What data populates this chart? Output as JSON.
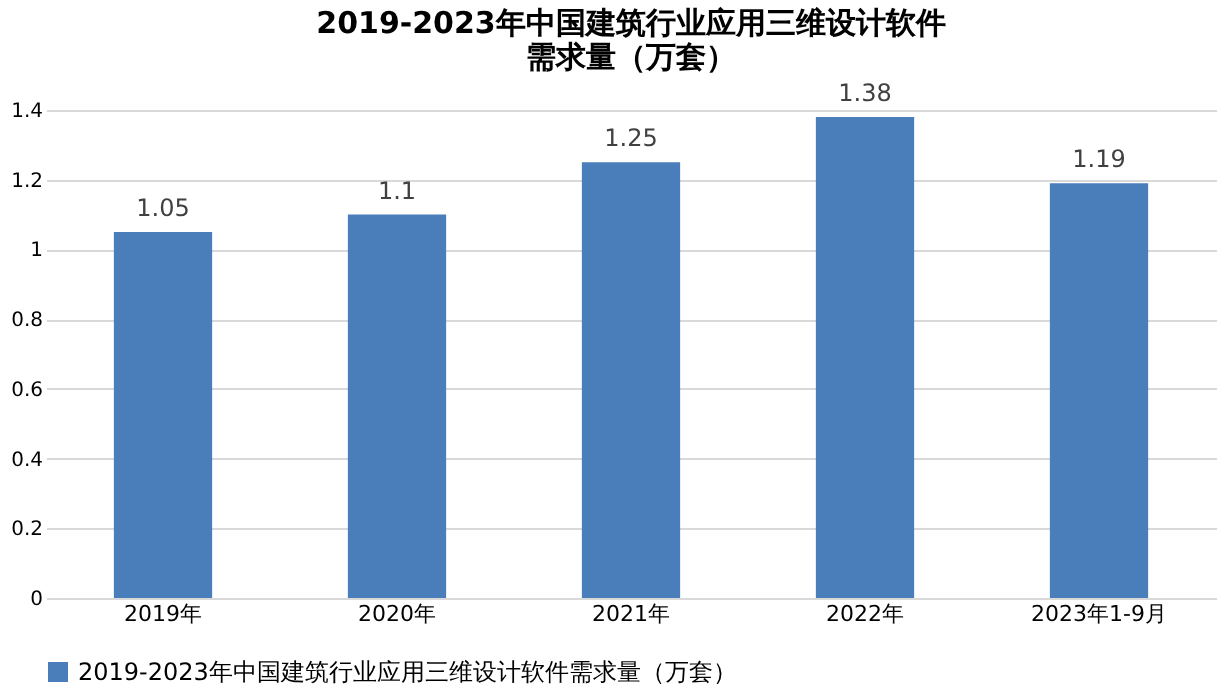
{
  "chart_data": {
    "type": "bar",
    "title": "2019-2023年中国建筑行业应用三维设计软件需求量（万套）",
    "categories": [
      "2019年",
      "2020年",
      "2021年",
      "2022年",
      "2023年1-9月"
    ],
    "series": [
      {
        "name": "2019-2023年中国建筑行业应用三维设计软件需求量（万套）",
        "color": "#4a7ebb",
        "values": [
          1.05,
          1.1,
          1.25,
          1.38,
          1.19
        ]
      }
    ],
    "ylim": [
      0,
      1.4
    ],
    "yticks": [
      0,
      0.2,
      0.4,
      0.6,
      0.8,
      1,
      1.2,
      1.4
    ],
    "grid": "y",
    "legend": "bottom",
    "data_labels": true
  }
}
